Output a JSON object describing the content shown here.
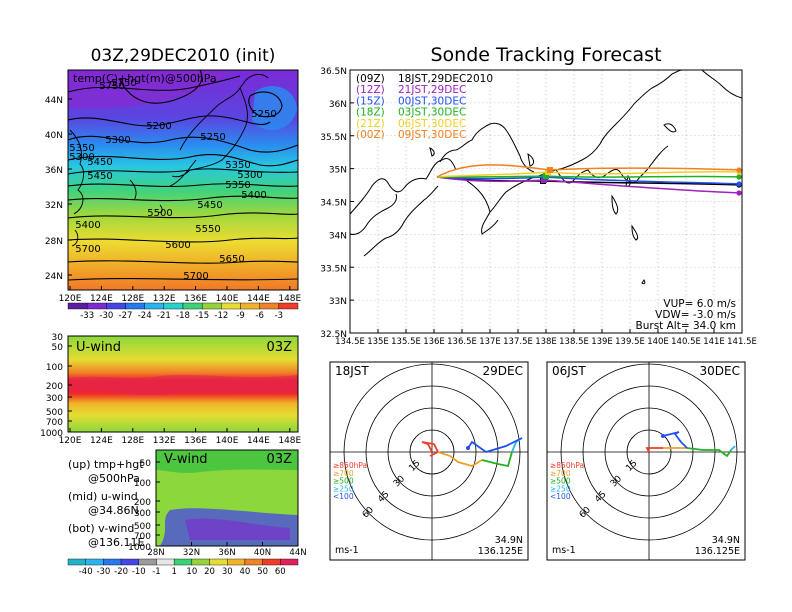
{
  "left_title": "03Z,29DEC2010 (init)",
  "right_title": "Sonde Tracking Forecast",
  "map500": {
    "label": "temp(C)+hgt(m)@500hPa",
    "lat_ticks": [
      "44N",
      "40N",
      "36N",
      "32N",
      "28N",
      "24N"
    ],
    "lon_ticks": [
      "120E",
      "124E",
      "128E",
      "132E",
      "136E",
      "140E",
      "144E",
      "148E"
    ],
    "height_labels": [
      "5750",
      "5200",
      "5250",
      "5250",
      "5300",
      "5350",
      "5300",
      "5350",
      "5400",
      "5450",
      "5450",
      "5500",
      "5550",
      "5600",
      "5650",
      "5700",
      "5700",
      "5750"
    ],
    "height_label_extra": [
      "5350",
      "5300",
      "5400",
      "5450"
    ],
    "colorbar": [
      "-33",
      "-30",
      "-27",
      "-24",
      "-21",
      "-18",
      "-15",
      "-12",
      "-9",
      "-6",
      "-3"
    ],
    "colors": [
      "#5a1ea0",
      "#7d2ad0",
      "#4646e6",
      "#2878f0",
      "#28b4f0",
      "#28d2c8",
      "#3cd278",
      "#96d23c",
      "#e6dc32",
      "#f0b428",
      "#f08228",
      "#f03c28"
    ]
  },
  "uwind": {
    "label": "U-wind",
    "time": "03Z",
    "y_ticks": [
      "30",
      "50",
      "100",
      "200",
      "300",
      "500",
      "700",
      "1000"
    ],
    "x_ticks": [
      "120E",
      "124E",
      "128E",
      "132E",
      "136E",
      "140E",
      "144E",
      "148E"
    ]
  },
  "vwind": {
    "label": "V-wind",
    "time": "03Z",
    "y_ticks": [
      "50",
      "100",
      "200",
      "300",
      "500",
      "700",
      "1000"
    ],
    "x_ticks": [
      "28N",
      "32N",
      "36N",
      "40N",
      "44N"
    ],
    "colorbar": [
      "-40",
      "-30",
      "-20",
      "-10",
      "-1",
      "1",
      "10",
      "20",
      "30",
      "40",
      "50",
      "60"
    ]
  },
  "legend_notes": [
    [
      "(up) tmp+hgt",
      "@500hPa"
    ],
    [
      "(mid) u-wind",
      "@34.86N"
    ],
    [
      "(bot) v-wind",
      "@136.11E"
    ]
  ],
  "track": {
    "lat_ticks": [
      "36.5N",
      "36N",
      "35.5N",
      "35N",
      "34.5N",
      "34N",
      "33.5N",
      "33N",
      "32.5N"
    ],
    "lon_ticks": [
      "134.5E",
      "135E",
      "135.5E",
      "136E",
      "136.5E",
      "137E",
      "137.5E",
      "138E",
      "138.5E",
      "139E",
      "139.5E",
      "140E",
      "140.5E",
      "141E",
      "141.5E"
    ],
    "legend": [
      {
        "run": "(09Z)",
        "time": "18JST,29DEC2010",
        "color": "#000000"
      },
      {
        "run": "(12Z)",
        "time": "21JST,29DEC",
        "color": "#a020c0"
      },
      {
        "run": "(15Z)",
        "time": "00JST,30DEC",
        "color": "#2050f0"
      },
      {
        "run": "(18Z)",
        "time": "03JST,30DEC",
        "color": "#20b020"
      },
      {
        "run": "(21Z)",
        "time": "06JST,30DEC",
        "color": "#f0d020"
      },
      {
        "run": "(00Z)",
        "time": "09JST,30DEC",
        "color": "#f08020"
      }
    ],
    "params": [
      "VUP=  6.0 m/s",
      "VDW= -3.0 m/s",
      "Burst Alt= 34.0 km"
    ]
  },
  "hodographs": [
    {
      "time": "18JST",
      "date": "29DEC",
      "radii": [
        "15",
        "30",
        "45",
        "60"
      ],
      "unit": "ms-1",
      "lat": "34.9N",
      "lon": "136.125E"
    },
    {
      "time": "06JST",
      "date": "30DEC",
      "radii": [
        "15",
        "30",
        "45",
        "60"
      ],
      "unit": "ms-1",
      "lat": "34.9N",
      "lon": "136.125E"
    }
  ],
  "hodo_legend": [
    {
      "label": "≥850hPa",
      "color": "#f03c28"
    },
    {
      "label": "≥700",
      "color": "#f0a028"
    },
    {
      "label": "≥500",
      "color": "#20b020"
    },
    {
      "label": "≥250",
      "color": "#28b4f0"
    },
    {
      "label": "<100",
      "color": "#2050f0"
    }
  ]
}
